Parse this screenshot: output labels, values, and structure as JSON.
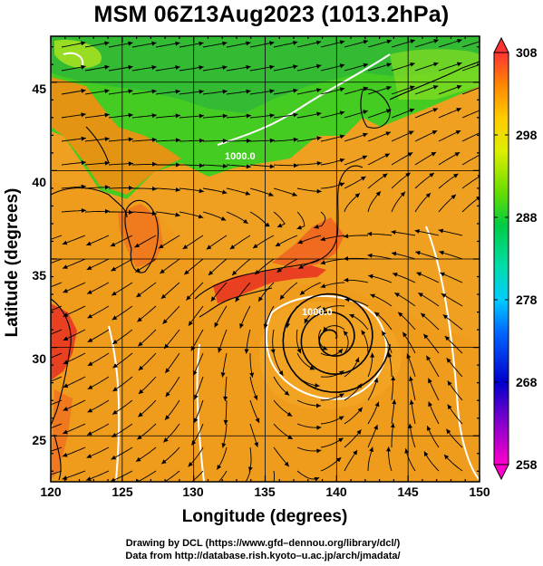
{
  "title": "MSM 06Z13Aug2023 (1013.2hPa)",
  "axes": {
    "xlabel": "Longitude (degrees)",
    "ylabel": "Latitude  (degrees)",
    "x_ticks": [
      "120",
      "125",
      "130",
      "135",
      "140",
      "145",
      "150"
    ],
    "y_ticks": [
      "45",
      "40",
      "35",
      "30",
      "25"
    ],
    "x_range": [
      120,
      150
    ],
    "y_range": [
      22.4,
      47.6
    ]
  },
  "colorbar": {
    "ticks": [
      "308",
      "298",
      "288",
      "278",
      "268",
      "258"
    ],
    "range": [
      258,
      308
    ],
    "colors": [
      "#ff00cc",
      "#8800cc",
      "#0000cc",
      "#0066ff",
      "#00ccff",
      "#00ddaa",
      "#00cc44",
      "#66dd00",
      "#ddee00",
      "#ffcc00",
      "#ff8800",
      "#ff4400",
      "#ff2222"
    ]
  },
  "contour_labels": [
    "1000.0",
    "1000.0"
  ],
  "credits": {
    "line1": "Drawing by DCL (https://www.gfd–dennou.org/library/dcl/)",
    "line2": "Data from http://database.rish.kyoto–u.ac.jp/arch/jmadata/"
  },
  "map_features": {
    "typhoon_center": {
      "lon": 139.7,
      "lat": 30.5
    },
    "warm_color": "#f0a020",
    "cool_color": "#44cc22",
    "hot_color": "#e84020"
  }
}
